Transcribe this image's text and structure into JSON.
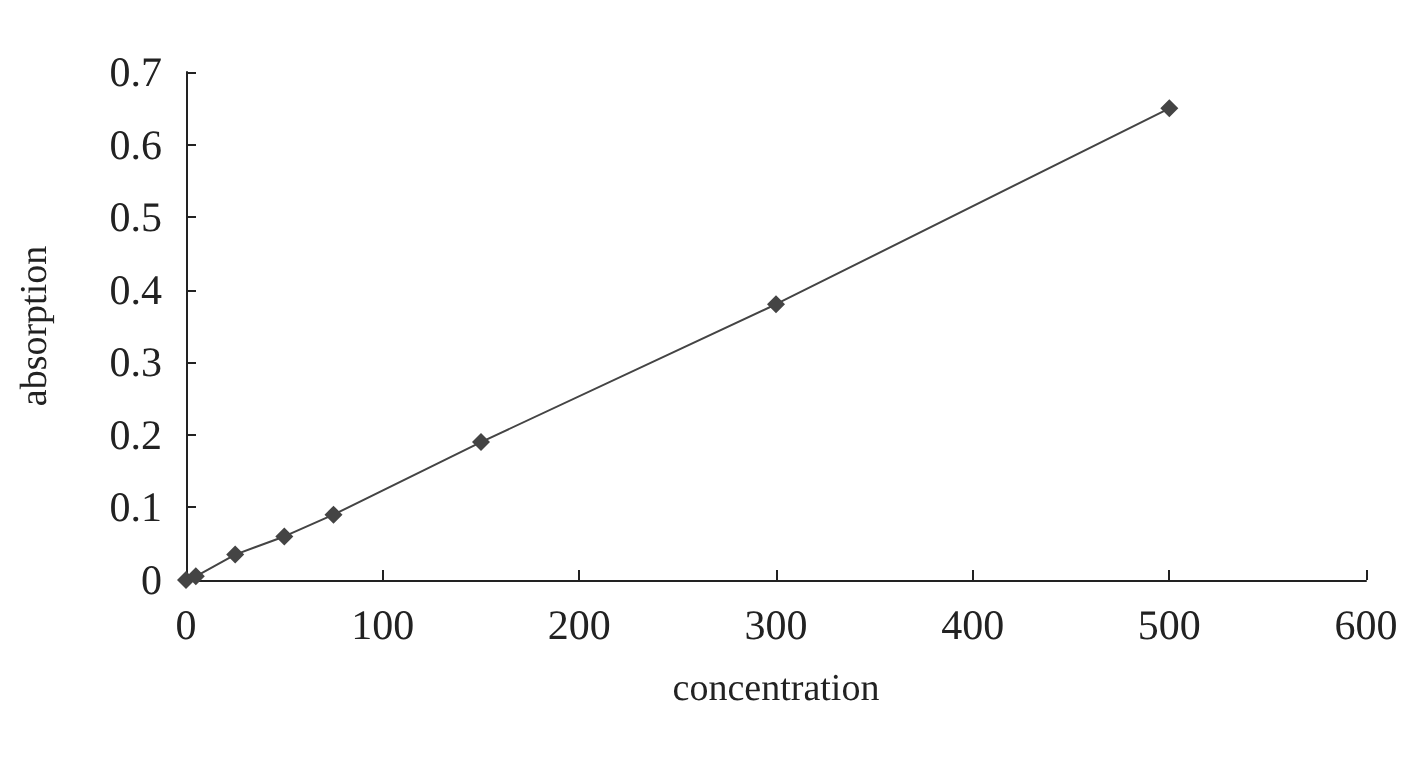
{
  "chart_data": {
    "type": "line",
    "xlabel": "concentration",
    "ylabel": "absorption",
    "x": [
      0,
      5,
      25,
      50,
      75,
      150,
      300,
      500
    ],
    "series": [
      {
        "color": "#444444",
        "values": [
          0,
          0.005,
          0.035,
          0.06,
          0.09,
          0.19,
          0.38,
          0.65
        ]
      }
    ],
    "xlim": [
      0,
      600
    ],
    "xticks": [
      0,
      100,
      200,
      300,
      400,
      500,
      600
    ],
    "ylim": [
      0,
      0.7
    ],
    "yticks": [
      0,
      0.1,
      0.2,
      0.3,
      0.4,
      0.5,
      0.6,
      0.7
    ],
    "grid": false,
    "marker": "diamond",
    "line_style": "solid"
  }
}
